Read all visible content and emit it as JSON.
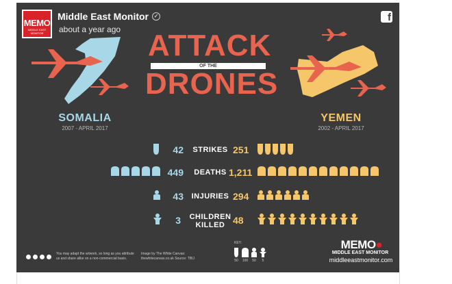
{
  "post": {
    "page_name": "Middle East Monitor",
    "time": "about a year ago",
    "logo_text": "MEMO",
    "logo_subtext": "MIDDLE EAST MONITOR"
  },
  "infographic": {
    "title_top": "ATTACK",
    "title_mid": "OF THE",
    "title_bottom": "DRONES",
    "left_country": "SOMALIA",
    "left_period": "2007 - APRIL 2017",
    "right_country": "YEMEN",
    "right_period": "2002 - APRIL 2017",
    "stats": [
      {
        "left": "42",
        "label": "STRIKES",
        "right": "251"
      },
      {
        "left": "449",
        "label": "DEATHS",
        "right": "1,211"
      },
      {
        "left": "43",
        "label": "INJURIES",
        "right": "294"
      },
      {
        "left": "3",
        "label": "CHILDREN KILLED",
        "right": "48"
      }
    ],
    "footer_license": "You may adapt the artwork, so long as you attribute us and share alike on a non-commercial basis.",
    "footer_credit": "Image by The White Canvas: thewhitecanvas.co.uk Source: TBIJ",
    "key_label": "KEY:",
    "key_values": [
      "50",
      "100",
      "50",
      "5"
    ],
    "brand": "MEMO",
    "brand_sub": "MIDDLE EAST MONITOR",
    "brand_url": "middleeastmonitor.com"
  },
  "colors": {
    "background": "#3a3a3a",
    "accent_red": "#e8644f",
    "somalia_blue": "#a8d8e8",
    "yemen_yellow": "#f5c76a",
    "logo_red": "#d9232a"
  },
  "icons": {
    "verified": "check-circle-icon",
    "facebook": "facebook-icon",
    "strike": "bomb-icon",
    "death": "tombstone-icon",
    "injury": "injured-person-icon",
    "child": "child-icon",
    "drone": "drone-icon"
  }
}
